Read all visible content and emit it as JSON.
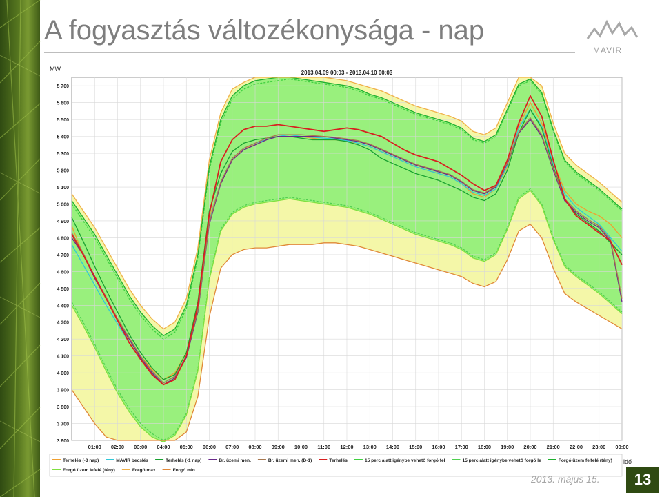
{
  "slide": {
    "title": "A fogyasztás változékonysága - nap",
    "logo_text": "MAVIR",
    "date": "2013. május 15.",
    "page_number": "13"
  },
  "colors": {
    "band_green": "#99f07d",
    "band_yellow": "#f4f7a8",
    "plot_bg": "#ffffff",
    "sidebar": "#4d6b1c"
  },
  "chart_data": {
    "type": "line",
    "title": "2013.04.09 00:03 - 2013.04.10 00:03",
    "ylabel": "MW",
    "xlabel": "idő",
    "ylim": [
      3600,
      5750
    ],
    "xlim": [
      0,
      24
    ],
    "grid": true,
    "legend_position": "bottom",
    "x_ticks": [
      "01:00",
      "02:00",
      "03:00",
      "04:00",
      "05:00",
      "06:00",
      "07:00",
      "08:00",
      "09:00",
      "10:00",
      "11:00",
      "12:00",
      "13:00",
      "14:00",
      "15:00",
      "16:00",
      "17:00",
      "18:00",
      "19:00",
      "20:00",
      "21:00",
      "22:00",
      "23:00",
      "00:00"
    ],
    "y_ticks": [
      "3 600",
      "3 700",
      "3 800",
      "3 900",
      "4 000",
      "4 100",
      "4 200",
      "4 300",
      "4 400",
      "4 500",
      "4 600",
      "4 700",
      "4 800",
      "4 900",
      "5 000",
      "5 100",
      "5 200",
      "5 300",
      "5 400",
      "5 500",
      "5 600",
      "5 700"
    ],
    "x": [
      0,
      0.5,
      1,
      1.5,
      2,
      2.5,
      3,
      3.5,
      4,
      4.5,
      5,
      5.5,
      6,
      6.5,
      7,
      7.5,
      8,
      8.5,
      9,
      9.5,
      10,
      10.5,
      11,
      11.5,
      12,
      12.5,
      13,
      13.5,
      14,
      14.5,
      15,
      15.5,
      16,
      16.5,
      17,
      17.5,
      18,
      18.5,
      19,
      19.5,
      20,
      20.5,
      21,
      21.5,
      22,
      22.5,
      23,
      23.5,
      24
    ],
    "series": [
      {
        "name": "Terhelés (-3 nap)",
        "color": "#f0a030",
        "values": [
          4870,
          4700,
          4560,
          4440,
          4320,
          4200,
          4100,
          4020,
          3960,
          4000,
          4120,
          4400,
          4920,
          5120,
          5260,
          5330,
          5350,
          5380,
          5400,
          5410,
          5400,
          5390,
          5380,
          5380,
          5370,
          5360,
          5340,
          5310,
          5280,
          5250,
          5220,
          5200,
          5180,
          5160,
          5120,
          5060,
          5040,
          5090,
          5220,
          5460,
          5600,
          5480,
          5250,
          5080,
          5000,
          4960,
          4930,
          4880,
          4800
        ]
      },
      {
        "name": "MAVIR becslés",
        "color": "#30c8d8",
        "values": [
          4760,
          4640,
          4520,
          4400,
          4290,
          4180,
          4080,
          4000,
          3940,
          3980,
          4100,
          4380,
          4900,
          5130,
          5270,
          5330,
          5360,
          5380,
          5400,
          5410,
          5400,
          5395,
          5390,
          5385,
          5375,
          5360,
          5340,
          5310,
          5280,
          5250,
          5220,
          5200,
          5180,
          5160,
          5120,
          5070,
          5050,
          5090,
          5230,
          5450,
          5560,
          5460,
          5240,
          5060,
          4980,
          4930,
          4880,
          4800,
          4720
        ]
      },
      {
        "name": "Terhelés (-1 nap)",
        "color": "#18a030",
        "values": [
          4920,
          4780,
          4630,
          4490,
          4360,
          4230,
          4120,
          4030,
          3960,
          3990,
          4120,
          4420,
          4960,
          5180,
          5310,
          5360,
          5380,
          5390,
          5400,
          5400,
          5390,
          5380,
          5380,
          5380,
          5370,
          5350,
          5320,
          5270,
          5240,
          5210,
          5180,
          5160,
          5140,
          5110,
          5080,
          5040,
          5020,
          5060,
          5200,
          5420,
          5560,
          5450,
          5220,
          5030,
          4940,
          4890,
          4840,
          4770,
          4700
        ]
      },
      {
        "name": "Br. üzemi men.",
        "color": "#6a2a8a",
        "values": [
          4800,
          4700,
          4560,
          4440,
          4310,
          4200,
          4090,
          4000,
          3930,
          3970,
          4090,
          4360,
          4880,
          5120,
          5260,
          5320,
          5350,
          5380,
          5400,
          5400,
          5400,
          5400,
          5400,
          5390,
          5380,
          5370,
          5350,
          5320,
          5290,
          5260,
          5230,
          5210,
          5190,
          5170,
          5130,
          5080,
          5060,
          5100,
          5240,
          5420,
          5500,
          5400,
          5200,
          5020,
          4950,
          4900,
          4860,
          4780,
          4420
        ]
      },
      {
        "name": "Br. üzemi men. (D-1)",
        "color": "#a87850",
        "values": [
          4830,
          4710,
          4570,
          4450,
          4320,
          4210,
          4100,
          4010,
          3940,
          3980,
          4100,
          4370,
          4890,
          5130,
          5270,
          5330,
          5360,
          5390,
          5410,
          5410,
          5410,
          5405,
          5400,
          5395,
          5385,
          5375,
          5355,
          5325,
          5295,
          5265,
          5235,
          5215,
          5195,
          5175,
          5135,
          5085,
          5065,
          5105,
          5245,
          5425,
          5510,
          5410,
          5210,
          5030,
          4960,
          4910,
          4870,
          4790,
          4440
        ]
      },
      {
        "name": "Terhelés",
        "color": "#d82020",
        "values": [
          4820,
          4700,
          4570,
          4440,
          4310,
          4180,
          4080,
          3990,
          3930,
          3960,
          4100,
          4400,
          4940,
          5250,
          5380,
          5440,
          5460,
          5460,
          5470,
          5460,
          5450,
          5440,
          5430,
          5440,
          5450,
          5440,
          5420,
          5400,
          5360,
          5320,
          5290,
          5270,
          5250,
          5210,
          5170,
          5120,
          5080,
          5110,
          5260,
          5480,
          5640,
          5520,
          5260,
          5030,
          4930,
          4880,
          4830,
          4780,
          4640
        ]
      },
      {
        "name": "15 perc alatt igénybe vehető forgó fel",
        "color": "#40d040",
        "values": [
          5000,
          4900,
          4800,
          4680,
          4560,
          4440,
          4340,
          4260,
          4200,
          4240,
          4380,
          4680,
          5200,
          5480,
          5620,
          5680,
          5710,
          5720,
          5730,
          5740,
          5730,
          5720,
          5710,
          5700,
          5690,
          5670,
          5640,
          5620,
          5590,
          5560,
          5530,
          5510,
          5490,
          5470,
          5440,
          5380,
          5360,
          5400,
          5550,
          5700,
          5730,
          5650,
          5430,
          5250,
          5180,
          5130,
          5080,
          5020,
          4960
        ]
      },
      {
        "name": "15 perc alatt igénybe vehető forgó le",
        "color": "#50d050",
        "values": [
          4420,
          4300,
          4170,
          4030,
          3900,
          3790,
          3700,
          3640,
          3600,
          3640,
          3760,
          4020,
          4560,
          4850,
          4950,
          4990,
          5010,
          5020,
          5030,
          5040,
          5030,
          5020,
          5010,
          5000,
          4990,
          4970,
          4950,
          4920,
          4890,
          4860,
          4830,
          4810,
          4790,
          4770,
          4740,
          4690,
          4670,
          4710,
          4860,
          5040,
          5090,
          5000,
          4800,
          4640,
          4580,
          4530,
          4480,
          4420,
          4360
        ]
      },
      {
        "name": "Forgó üzem felfelé (tény)",
        "color": "#20b030",
        "values": [
          5020,
          4920,
          4820,
          4700,
          4580,
          4460,
          4360,
          4280,
          4220,
          4260,
          4400,
          4700,
          5220,
          5500,
          5640,
          5700,
          5730,
          5740,
          5750,
          5750,
          5740,
          5730,
          5720,
          5710,
          5700,
          5680,
          5650,
          5630,
          5600,
          5570,
          5540,
          5520,
          5500,
          5480,
          5450,
          5390,
          5370,
          5410,
          5560,
          5710,
          5740,
          5660,
          5440,
          5260,
          5190,
          5140,
          5090,
          5030,
          4970
        ]
      },
      {
        "name": "Forgó üzem lefelé (tény)",
        "color": "#80e040",
        "values": [
          4400,
          4280,
          4150,
          4010,
          3880,
          3770,
          3680,
          3620,
          3590,
          3630,
          3750,
          4010,
          4550,
          4840,
          4940,
          4980,
          5000,
          5010,
          5020,
          5030,
          5020,
          5010,
          5000,
          4990,
          4980,
          4960,
          4940,
          4910,
          4880,
          4850,
          4820,
          4800,
          4780,
          4760,
          4730,
          4680,
          4660,
          4700,
          4850,
          5030,
          5080,
          4990,
          4790,
          4630,
          4570,
          4520,
          4470,
          4410,
          4350
        ]
      },
      {
        "name": "Forgó max",
        "color": "#f0b048",
        "values": [
          5060,
          4960,
          4860,
          4740,
          4620,
          4500,
          4400,
          4320,
          4260,
          4300,
          4440,
          4740,
          5260,
          5540,
          5680,
          5720,
          5750,
          5750,
          5750,
          5750,
          5750,
          5750,
          5750,
          5740,
          5730,
          5710,
          5690,
          5670,
          5640,
          5610,
          5580,
          5560,
          5540,
          5520,
          5490,
          5430,
          5410,
          5450,
          5600,
          5750,
          5750,
          5700,
          5480,
          5300,
          5230,
          5180,
          5130,
          5070,
          5010
        ]
      },
      {
        "name": "Forgó min",
        "color": "#e08838",
        "values": [
          3900,
          3800,
          3700,
          3620,
          3600,
          3600,
          3600,
          3600,
          3600,
          3600,
          3650,
          3860,
          4330,
          4620,
          4700,
          4730,
          4740,
          4740,
          4750,
          4760,
          4760,
          4760,
          4770,
          4770,
          4760,
          4750,
          4730,
          4710,
          4690,
          4670,
          4650,
          4630,
          4610,
          4590,
          4570,
          4530,
          4510,
          4540,
          4670,
          4840,
          4880,
          4800,
          4620,
          4470,
          4420,
          4380,
          4340,
          4300,
          4260
        ]
      }
    ]
  }
}
